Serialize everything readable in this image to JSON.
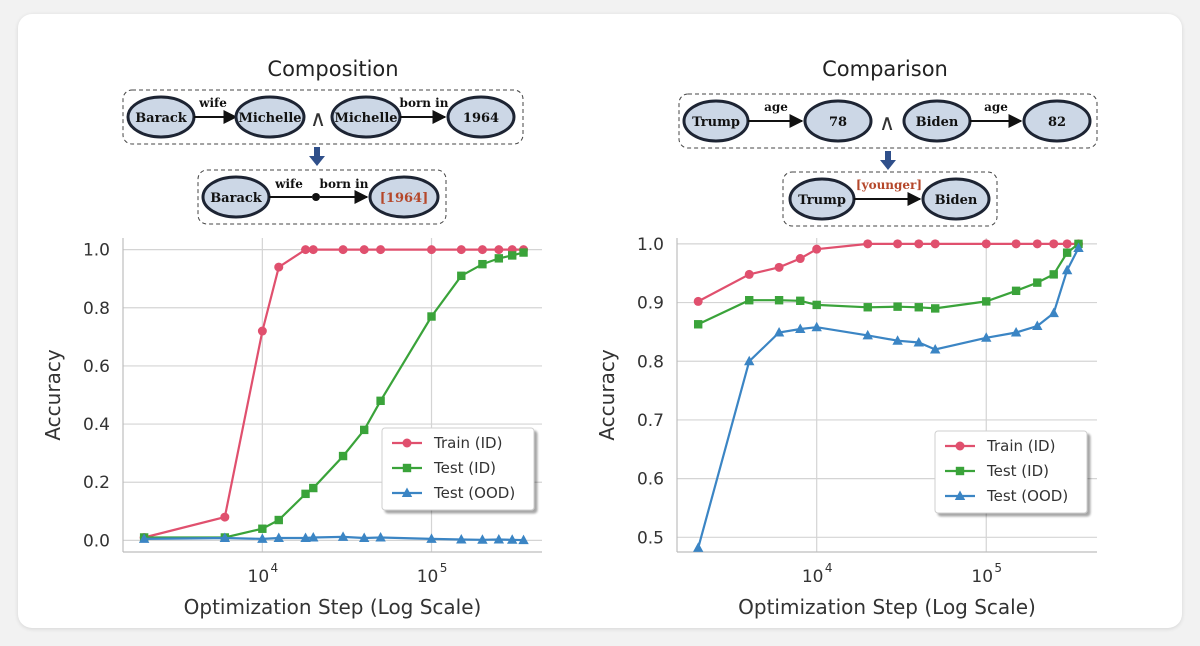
{
  "colors": {
    "train": "#e0506e",
    "test_id": "#3aa33a",
    "test_ood": "#3b85c4",
    "node_fill": "#ccd7e6",
    "node_stroke": "#1d2433",
    "highlight": "#b5472a",
    "arrow_blue": "#2f4f8a"
  },
  "left": {
    "title": "Composition",
    "diagram": {
      "top": {
        "nodes": [
          "Barack",
          "Michelle",
          "Michelle",
          "1964"
        ],
        "edges": [
          "wife",
          "born in"
        ],
        "operator": "∧"
      },
      "bottom": {
        "nodes": [
          "Barack",
          "[1964]"
        ],
        "edges": [
          "wife",
          "born in"
        ]
      }
    }
  },
  "right": {
    "title": "Comparison",
    "diagram": {
      "top": {
        "nodes": [
          "Trump",
          "78",
          "Biden",
          "82"
        ],
        "edges": [
          "age",
          "age"
        ],
        "operator": "∧"
      },
      "bottom": {
        "nodes": [
          "Trump",
          "Biden"
        ],
        "edges": [
          "[younger]"
        ]
      }
    }
  },
  "chart_data": [
    {
      "type": "line",
      "title": "Composition",
      "xlabel": "Optimization Step (Log Scale)",
      "ylabel": "Accuracy",
      "xscale": "log",
      "xlim": [
        1500,
        450000
      ],
      "ylim": [
        -0.04,
        1.04
      ],
      "yticks": [
        0.0,
        0.2,
        0.4,
        0.6,
        0.8,
        1.0
      ],
      "ytick_labels": [
        "0.0",
        "0.2",
        "0.4",
        "0.6",
        "0.8",
        "1.0"
      ],
      "xticks": [
        10000,
        100000
      ],
      "xtick_base": [
        "10",
        "10"
      ],
      "xtick_exp": [
        "4",
        "5"
      ],
      "legend_position": "lower-right",
      "grid": true,
      "series": [
        {
          "name": "Train (ID)",
          "marker": "circle",
          "x": [
            2000,
            6000,
            10000,
            12500,
            18000,
            20000,
            30000,
            40000,
            50000,
            100000,
            150000,
            200000,
            250000,
            300000,
            350000
          ],
          "y": [
            0.01,
            0.08,
            0.72,
            0.94,
            1.0,
            1.0,
            1.0,
            1.0,
            1.0,
            1.0,
            1.0,
            1.0,
            1.0,
            1.0,
            1.0
          ]
        },
        {
          "name": "Test (ID)",
          "marker": "square",
          "x": [
            2000,
            6000,
            10000,
            12500,
            18000,
            20000,
            30000,
            40000,
            50000,
            100000,
            150000,
            200000,
            250000,
            300000,
            350000
          ],
          "y": [
            0.01,
            0.01,
            0.04,
            0.07,
            0.16,
            0.18,
            0.29,
            0.38,
            0.48,
            0.77,
            0.91,
            0.95,
            0.97,
            0.98,
            0.99
          ]
        },
        {
          "name": "Test (OOD)",
          "marker": "triangle",
          "x": [
            2000,
            6000,
            10000,
            12500,
            18000,
            20000,
            30000,
            40000,
            50000,
            100000,
            150000,
            200000,
            250000,
            300000,
            350000
          ],
          "y": [
            0.005,
            0.008,
            0.005,
            0.008,
            0.008,
            0.01,
            0.012,
            0.008,
            0.01,
            0.005,
            0.003,
            0.002,
            0.003,
            0.002,
            0.001
          ]
        }
      ]
    },
    {
      "type": "line",
      "title": "Comparison",
      "xlabel": "Optimization Step (Log Scale)",
      "ylabel": "Accuracy",
      "xscale": "log",
      "xlim": [
        1500,
        450000
      ],
      "ylim": [
        0.475,
        1.01
      ],
      "yticks": [
        0.5,
        0.6,
        0.7,
        0.8,
        0.9,
        1.0
      ],
      "ytick_labels": [
        "0.5",
        "0.6",
        "0.7",
        "0.8",
        "0.9",
        "1.0"
      ],
      "xticks": [
        10000,
        100000
      ],
      "xtick_base": [
        "10",
        "10"
      ],
      "xtick_exp": [
        "4",
        "5"
      ],
      "legend_position": "lower-right",
      "grid": true,
      "series": [
        {
          "name": "Train (ID)",
          "marker": "circle",
          "x": [
            2000,
            4000,
            6000,
            8000,
            10000,
            20000,
            30000,
            40000,
            50000,
            100000,
            150000,
            200000,
            250000,
            300000,
            350000
          ],
          "y": [
            0.902,
            0.948,
            0.96,
            0.975,
            0.991,
            1.0,
            1.0,
            1.0,
            1.0,
            1.0,
            1.0,
            1.0,
            1.0,
            1.0,
            1.0
          ]
        },
        {
          "name": "Test (ID)",
          "marker": "square",
          "x": [
            2000,
            4000,
            6000,
            8000,
            10000,
            20000,
            30000,
            40000,
            50000,
            100000,
            150000,
            200000,
            250000,
            300000,
            350000
          ],
          "y": [
            0.863,
            0.904,
            0.904,
            0.903,
            0.896,
            0.892,
            0.893,
            0.892,
            0.89,
            0.902,
            0.92,
            0.934,
            0.948,
            0.985,
            1.0
          ]
        },
        {
          "name": "Test (OOD)",
          "marker": "triangle",
          "x": [
            2000,
            4000,
            6000,
            8000,
            10000,
            20000,
            30000,
            40000,
            50000,
            100000,
            150000,
            200000,
            250000,
            300000,
            350000
          ],
          "y": [
            0.482,
            0.8,
            0.849,
            0.855,
            0.858,
            0.844,
            0.835,
            0.832,
            0.82,
            0.84,
            0.849,
            0.86,
            0.882,
            0.955,
            0.993
          ]
        }
      ]
    }
  ]
}
